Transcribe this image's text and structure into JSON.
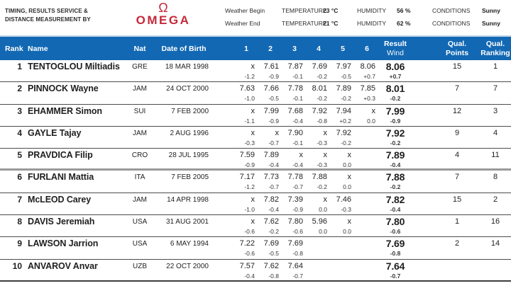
{
  "branding": {
    "service_line1": "TIMING, RESULTS SERVICE &",
    "service_line2": "DISTANCE MEASUREMENT BY",
    "logo_symbol": "Ω",
    "logo_text": "OMEGA"
  },
  "colors": {
    "accent_blue": "#1268b3",
    "logo_red": "#c5293a"
  },
  "weather": [
    {
      "label": "Weather Begin",
      "temp_label": "TEMPERATURE",
      "temp_value": "23 °C",
      "humidity_label": "HUMIDITY",
      "humidity_value": "56 %",
      "conditions_label": "CONDITIONS",
      "conditions_value": "Sunny"
    },
    {
      "label": "Weather End",
      "temp_label": "TEMPERATURE",
      "temp_value": "21 °C",
      "humidity_label": "HUMIDITY",
      "humidity_value": "62 %",
      "conditions_label": "CONDITIONS",
      "conditions_value": "Sunny"
    }
  ],
  "table": {
    "columns": {
      "rank": "Rank",
      "name": "Name",
      "nat": "Nat",
      "dob": "Date of Birth",
      "attempts": [
        "1",
        "2",
        "3",
        "4",
        "5",
        "6"
      ],
      "result_line1": "Result",
      "result_line2": "Wind",
      "points_line1": "Qual.",
      "points_line2": "Points",
      "ranking_line1": "Qual.",
      "ranking_line2": "Ranking"
    },
    "rows": [
      {
        "rank": "1",
        "name": "TENTOGLOU Miltiadis",
        "nat": "GRE",
        "dob": "18 MAR 1998",
        "attempts": [
          "x",
          "7.61",
          "7.87",
          "7.69",
          "7.97",
          "8.06"
        ],
        "winds": [
          "-1.2",
          "-0.9",
          "-0.1",
          "-0.2",
          "-0.5",
          "+0.7"
        ],
        "result": "8.06",
        "result_wind": "+0.7",
        "points": "15",
        "ranking": "1"
      },
      {
        "rank": "2",
        "name": "PINNOCK Wayne",
        "nat": "JAM",
        "dob": "24 OCT 2000",
        "attempts": [
          "7.63",
          "7.66",
          "7.78",
          "8.01",
          "7.89",
          "7.85"
        ],
        "winds": [
          "-1.0",
          "-0.5",
          "-0.1",
          "-0.2",
          "-0.2",
          "+0.3"
        ],
        "result": "8.01",
        "result_wind": "-0.2",
        "points": "7",
        "ranking": "7"
      },
      {
        "rank": "3",
        "name": "EHAMMER Simon",
        "nat": "SUI",
        "dob": "7 FEB 2000",
        "attempts": [
          "x",
          "7.99",
          "7.68",
          "7.92",
          "7.94",
          "x"
        ],
        "winds": [
          "-1.1",
          "-0.9",
          "-0.4",
          "-0.8",
          "+0.2",
          "0.0"
        ],
        "result": "7.99",
        "result_wind": "-0.9",
        "points": "12",
        "ranking": "3"
      },
      {
        "rank": "4",
        "name": "GAYLE Tajay",
        "nat": "JAM",
        "dob": "2 AUG 1996",
        "attempts": [
          "x",
          "x",
          "7.90",
          "x",
          "7.92",
          ""
        ],
        "winds": [
          "-0.3",
          "-0.7",
          "-0.1",
          "-0.3",
          "-0.2",
          ""
        ],
        "result": "7.92",
        "result_wind": "-0.2",
        "points": "9",
        "ranking": "4"
      },
      {
        "rank": "5",
        "name": "PRAVDICA Filip",
        "nat": "CRO",
        "dob": "28 JUL 1995",
        "attempts": [
          "7.59",
          "7.89",
          "x",
          "x",
          "x",
          ""
        ],
        "winds": [
          "-0.9",
          "-0.4",
          "-0.4",
          "-0.3",
          "0.0",
          ""
        ],
        "result": "7.89",
        "result_wind": "-0.4",
        "points": "4",
        "ranking": "11"
      },
      {
        "rank": "6",
        "name": "FURLANI Mattia",
        "nat": "ITA",
        "dob": "7 FEB 2005",
        "attempts": [
          "7.17",
          "7.73",
          "7.78",
          "7.88",
          "x",
          ""
        ],
        "winds": [
          "-1.2",
          "-0.7",
          "-0.7",
          "-0.2",
          "0.0",
          ""
        ],
        "result": "7.88",
        "result_wind": "-0.2",
        "points": "7",
        "ranking": "8"
      },
      {
        "rank": "7",
        "name": "McLEOD Carey",
        "nat": "JAM",
        "dob": "14 APR 1998",
        "attempts": [
          "x",
          "7.82",
          "7.39",
          "x",
          "7.46",
          ""
        ],
        "winds": [
          "-1.0",
          "-0.4",
          "-0.9",
          "0.0",
          "-0.3",
          ""
        ],
        "result": "7.82",
        "result_wind": "-0.4",
        "points": "15",
        "ranking": "2"
      },
      {
        "rank": "8",
        "name": "DAVIS Jeremiah",
        "nat": "USA",
        "dob": "31 AUG 2001",
        "attempts": [
          "x",
          "7.62",
          "7.80",
          "5.96",
          "x",
          ""
        ],
        "winds": [
          "-0.6",
          "-0.2",
          "-0.6",
          "0.0",
          "0.0",
          ""
        ],
        "result": "7.80",
        "result_wind": "-0.6",
        "points": "1",
        "ranking": "16"
      },
      {
        "rank": "9",
        "name": "LAWSON Jarrion",
        "nat": "USA",
        "dob": "6 MAY 1994",
        "attempts": [
          "7.22",
          "7.69",
          "7.69",
          "",
          "",
          ""
        ],
        "winds": [
          "-0.6",
          "-0.5",
          "-0.8",
          "",
          "",
          ""
        ],
        "result": "7.69",
        "result_wind": "-0.8",
        "points": "2",
        "ranking": "14"
      },
      {
        "rank": "10",
        "name": "ANVAROV Anvar",
        "nat": "UZB",
        "dob": "22 OCT 2000",
        "attempts": [
          "7.57",
          "7.62",
          "7.64",
          "",
          "",
          ""
        ],
        "winds": [
          "-0.4",
          "-0.8",
          "-0.7",
          "",
          "",
          ""
        ],
        "result": "7.64",
        "result_wind": "-0.7",
        "points": "",
        "ranking": ""
      }
    ]
  }
}
